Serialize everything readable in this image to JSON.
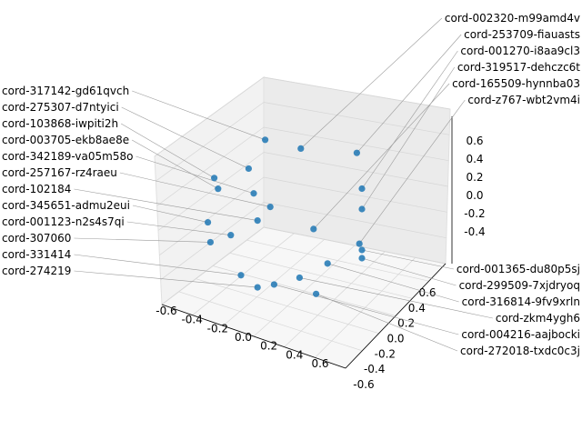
{
  "chart_data": {
    "type": "scatter",
    "projection": "3d",
    "title": "",
    "xlabel": "",
    "ylabel": "",
    "zlabel": "",
    "xlim": [
      -0.7,
      0.7
    ],
    "ylim": [
      -0.7,
      0.7
    ],
    "zlim": [
      -0.7,
      0.7
    ],
    "grid": true,
    "marker_color": "#1f77b4",
    "x_ticks": [
      "-0.6",
      "-0.4",
      "-0.2",
      "0.0",
      "0.2",
      "0.4",
      "0.6"
    ],
    "y_ticks": [
      "-0.6",
      "-0.4",
      "-0.2",
      "0.0",
      "0.2",
      "0.4",
      "0.6"
    ],
    "z_ticks": [
      "-0.4",
      "-0.2",
      "0.0",
      "0.2",
      "0.4",
      "0.6"
    ],
    "points": [
      {
        "label": "cord-317142-gd61qvch",
        "x": -0.06,
        "y": 0,
        "z": 0.49
      },
      {
        "label": "cord-002320-m99amd4v",
        "x": 0.22,
        "y": 0,
        "z": 0.51
      },
      {
        "label": "cord-253709-fiauasts",
        "x": 0.66,
        "y": 0,
        "z": 0.61
      },
      {
        "label": "cord-275307-d7ntyici",
        "x": -0.19,
        "y": 0,
        "z": 0.24
      },
      {
        "label": "cord-103868-iwpiti2h",
        "x": -0.46,
        "y": 0,
        "z": 0.09
      },
      {
        "label": "cord-003705-ekb8ae8e",
        "x": -0.43,
        "y": 0,
        "z": 0.02
      },
      {
        "label": "cord-342189-va05m58o",
        "x": -0.15,
        "y": 0,
        "z": 0.07
      },
      {
        "label": "cord-001270-i8aa9cl3",
        "x": 0.7,
        "y": 0,
        "z": 0.36
      },
      {
        "label": "cord-257167-rz4raeu",
        "x": -0.02,
        "y": 0,
        "z": 0.01
      },
      {
        "label": "cord-319517-dehczc6t",
        "x": 0.7,
        "y": 0,
        "z": 0.21
      },
      {
        "label": "cord-102184",
        "x": -0.12,
        "y": 0,
        "z": -0.12
      },
      {
        "label": "cord-345651-admu2eui",
        "x": -0.51,
        "y": 0,
        "z": -0.25
      },
      {
        "label": "cord-165509-hynnba03",
        "x": 0.32,
        "y": 0,
        "z": -0.05
      },
      {
        "label": "cord-001123-n2s4s7qi",
        "x": -0.33,
        "y": 0,
        "z": -0.29
      },
      {
        "label": "cord-307060",
        "x": -0.49,
        "y": 0,
        "z": -0.39
      },
      {
        "label": "cord-z767-wbt2vm4i",
        "x": 0.68,
        "y": 0,
        "z": -0.05
      },
      {
        "label": "cord-001365-du80p5sj",
        "x": 0.7,
        "y": 0,
        "z": -0.09
      },
      {
        "label": "cord-299509-7xjdryoq",
        "x": 0.7,
        "y": 0,
        "z": -0.15
      },
      {
        "label": "cord-316814-9fv9xrln",
        "x": 0.43,
        "y": 0,
        "z": -0.27
      },
      {
        "label": "cord-331414",
        "x": -0.25,
        "y": 0,
        "z": -0.56
      },
      {
        "label": "cord-zkm4ygh6",
        "x": 0.21,
        "y": 0,
        "z": -0.44
      },
      {
        "label": "cord-274219",
        "x": -0.12,
        "y": 0,
        "z": -0.61
      },
      {
        "label": "cord-004216-aajbocki",
        "x": 0.01,
        "y": 0,
        "z": -0.55
      },
      {
        "label": "cord-272018-txdc0c3j",
        "x": 0.34,
        "y": 0,
        "z": -0.52
      }
    ]
  }
}
